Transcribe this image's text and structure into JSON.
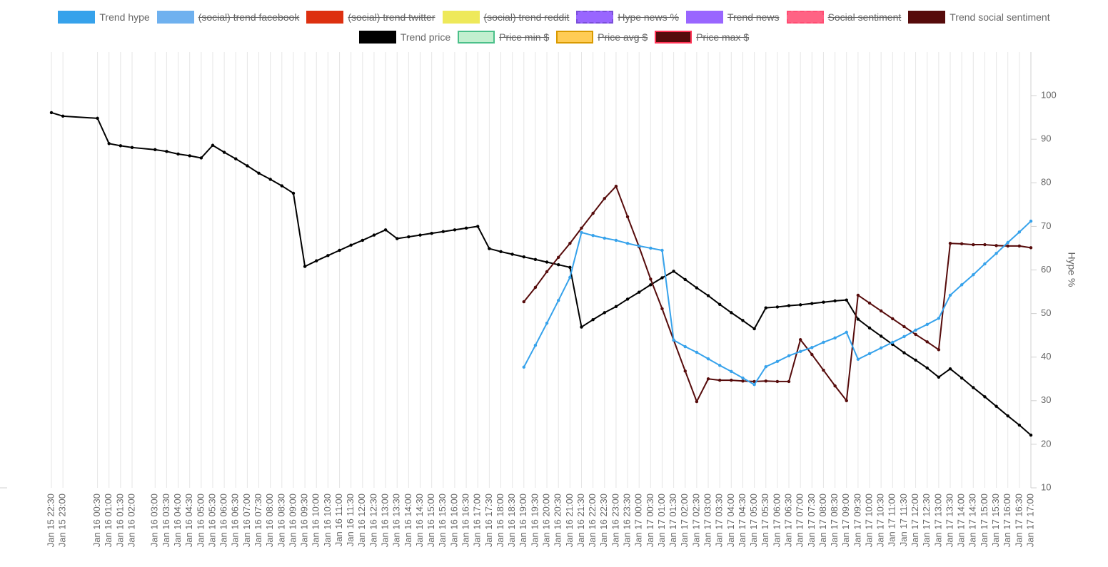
{
  "chart_data": {
    "type": "line",
    "y_label": "Hype %",
    "ylim": [
      10,
      110
    ],
    "yticks": [
      10,
      20,
      30,
      40,
      50,
      60,
      70,
      80,
      90,
      100
    ],
    "grid": "x",
    "span_gaps": true,
    "legend": "top",
    "categories": [
      "Jan 15 22:30",
      "Jan 15 23:00",
      null,
      null,
      "Jan 16 00:30",
      "Jan 16 01:00",
      "Jan 16 01:30",
      "Jan 16 02:00",
      null,
      "Jan 16 03:00",
      "Jan 16 03:30",
      "Jan 16 04:00",
      "Jan 16 04:30",
      "Jan 16 05:00",
      "Jan 16 05:30",
      "Jan 16 06:00",
      "Jan 16 06:30",
      "Jan 16 07:00",
      "Jan 16 07:30",
      "Jan 16 08:00",
      "Jan 16 08:30",
      "Jan 16 09:00",
      "Jan 16 09:30",
      "Jan 16 10:00",
      "Jan 16 10:30",
      "Jan 16 11:00",
      "Jan 16 11:30",
      "Jan 16 12:00",
      "Jan 16 12:30",
      "Jan 16 13:00",
      "Jan 16 13:30",
      "Jan 16 14:00",
      "Jan 16 14:30",
      "Jan 16 15:00",
      "Jan 16 15:30",
      "Jan 16 16:00",
      "Jan 16 16:30",
      "Jan 16 17:00",
      "Jan 16 17:30",
      "Jan 16 18:00",
      "Jan 16 18:30",
      "Jan 16 19:00",
      "Jan 16 19:30",
      "Jan 16 20:00",
      "Jan 16 20:30",
      "Jan 16 21:00",
      "Jan 16 21:30",
      "Jan 16 22:00",
      "Jan 16 22:30",
      "Jan 16 23:00",
      "Jan 16 23:30",
      "Jan 17 00:00",
      "Jan 17 00:30",
      "Jan 17 01:00",
      "Jan 17 01:30",
      "Jan 17 02:00",
      "Jan 17 02:30",
      "Jan 17 03:00",
      "Jan 17 03:30",
      "Jan 17 04:00",
      "Jan 17 04:30",
      "Jan 17 05:00",
      "Jan 17 05:30",
      "Jan 17 06:00",
      "Jan 17 06:30",
      "Jan 17 07:00",
      "Jan 17 07:30",
      "Jan 17 08:00",
      "Jan 17 08:30",
      "Jan 17 09:00",
      "Jan 17 09:30",
      "Jan 17 10:00",
      "Jan 17 10:30",
      "Jan 17 11:00",
      "Jan 17 11:30",
      "Jan 17 12:00",
      "Jan 17 12:30",
      "Jan 17 13:00",
      "Jan 17 13:30",
      "Jan 17 14:00",
      "Jan 17 14:30",
      "Jan 17 15:00",
      "Jan 17 15:30",
      "Jan 17 16:00",
      "Jan 17 16:30",
      "Jan 17 17:00"
    ],
    "series": [
      {
        "name": "Trend hype",
        "color": "#36a2eb",
        "values": [
          null,
          null,
          null,
          null,
          null,
          null,
          null,
          null,
          null,
          null,
          null,
          null,
          null,
          null,
          null,
          null,
          null,
          null,
          null,
          null,
          null,
          null,
          null,
          null,
          null,
          null,
          null,
          null,
          null,
          null,
          null,
          null,
          null,
          null,
          null,
          null,
          null,
          null,
          null,
          null,
          null,
          37.7,
          42.7,
          47.8,
          53,
          58.3,
          68.6,
          67.9,
          67.3,
          66.8,
          66.1,
          65.5,
          65,
          64.5,
          43.9,
          42.4,
          41.1,
          39.6,
          38.1,
          36.7,
          35.2,
          33.7,
          37.8,
          39,
          40.3,
          41.3,
          42.2,
          43.4,
          44.4,
          45.7,
          39.5,
          40.8,
          42.1,
          43.4,
          44.7,
          46.2,
          47.5,
          48.9,
          54.2,
          56.6,
          58.9,
          61.4,
          63.8,
          66.3,
          68.7,
          71.2
        ]
      },
      {
        "name": "(social) trend facebook",
        "color": "#6fb1ef",
        "hidden": true
      },
      {
        "name": "(social) trend twitter",
        "color": "#dd3010",
        "hidden": true
      },
      {
        "name": "(social) trend reddit",
        "color": "#eee95a",
        "hidden": true
      },
      {
        "name": "Hype news %",
        "color": "#9966ff",
        "border_color": "#7a4fd9",
        "dashed": true,
        "hidden": true
      },
      {
        "name": "Trend news",
        "color": "#9966ff",
        "hidden": true
      },
      {
        "name": "Social sentiment",
        "color": "#ff6384",
        "border_color": "#ff4d73",
        "dashed": true,
        "hidden": true
      },
      {
        "name": "Trend social sentiment",
        "color": "#560b0b",
        "values": [
          null,
          null,
          null,
          null,
          null,
          null,
          null,
          null,
          null,
          null,
          null,
          null,
          null,
          null,
          null,
          null,
          null,
          null,
          null,
          null,
          null,
          null,
          null,
          null,
          null,
          null,
          null,
          null,
          null,
          null,
          null,
          null,
          null,
          null,
          null,
          null,
          null,
          null,
          null,
          null,
          null,
          52.7,
          56,
          59.6,
          62.9,
          66.1,
          69.6,
          73,
          76.4,
          79.2,
          72.2,
          65.3,
          57.9,
          51.1,
          43.9,
          36.8,
          29.8,
          35,
          34.7,
          34.7,
          34.5,
          34.4,
          34.5,
          34.4,
          34.4,
          44,
          40.6,
          37,
          33.4,
          30,
          54.2,
          52.4,
          50.6,
          48.8,
          47,
          45.2,
          43.5,
          41.7,
          66.1,
          66,
          65.8,
          65.8,
          65.6,
          65.5,
          65.5,
          65.1
        ]
      },
      {
        "name": "Trend price",
        "color": "#000000",
        "values": [
          96.1,
          95.3,
          null,
          null,
          94.8,
          89,
          88.5,
          88.1,
          null,
          87.6,
          87.2,
          86.6,
          86.2,
          85.7,
          88.6,
          87,
          85.5,
          83.9,
          82.2,
          80.8,
          79.3,
          77.6,
          60.8,
          62.1,
          63.3,
          64.5,
          65.7,
          66.8,
          68,
          69.2,
          67.2,
          67.6,
          68,
          68.4,
          68.8,
          69.2,
          69.6,
          70,
          64.9,
          64.2,
          63.6,
          63,
          62.4,
          61.8,
          61.2,
          60.6,
          46.9,
          48.6,
          50.2,
          51.6,
          53.3,
          54.9,
          56.6,
          58.2,
          59.7,
          57.8,
          55.9,
          54.1,
          52.1,
          50.2,
          48.4,
          46.5,
          51.3,
          51.5,
          51.8,
          52,
          52.3,
          52.6,
          52.9,
          53.1,
          48.7,
          46.7,
          44.8,
          42.9,
          41,
          39.3,
          37.5,
          35.4,
          37.3,
          35.2,
          33,
          30.9,
          28.7,
          26.5,
          24.4,
          22.1
        ]
      },
      {
        "name": "Price min $",
        "color": "#c2efcf",
        "border_color": "#4bc08a",
        "hidden": true
      },
      {
        "name": "Price avg $",
        "color": "#ffcc55",
        "border_color": "#d99a00",
        "hidden": true
      },
      {
        "name": "Price max $",
        "color": "#560b0b",
        "border_color": "#ff3355",
        "hidden": true
      }
    ]
  }
}
